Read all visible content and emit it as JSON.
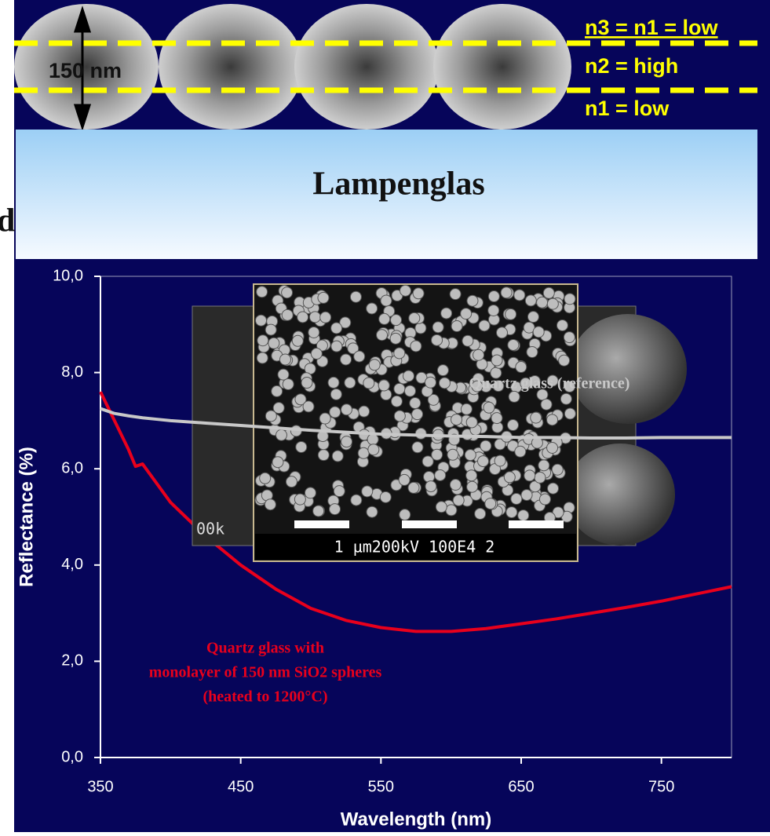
{
  "diagram": {
    "size_label": "150 nm",
    "layer_labels": [
      "n3 = n1 = low",
      "n2 = high",
      "n1 = low"
    ],
    "substrate": "Lampenglas",
    "cut_text": "d"
  },
  "micrographs": {
    "front_caption": "1 µm200kV 100E4 2",
    "back_caption": "00k"
  },
  "chart_data": {
    "type": "line",
    "x_label": "Wavelength (nm)",
    "y_label": "Reflectance (%)",
    "xlim": [
      350,
      800
    ],
    "ylim": [
      0,
      10
    ],
    "xticks": [
      350,
      450,
      550,
      650,
      750
    ],
    "yticks": [
      {
        "value": 0,
        "label": "0,0"
      },
      {
        "value": 2,
        "label": "2,0"
      },
      {
        "value": 4,
        "label": "4,0"
      },
      {
        "value": 6,
        "label": "6,0"
      },
      {
        "value": 8,
        "label": "8,0"
      },
      {
        "value": 10,
        "label": "10,0"
      }
    ],
    "x": [
      350,
      360,
      370,
      375,
      380,
      390,
      400,
      425,
      450,
      475,
      500,
      525,
      550,
      575,
      600,
      625,
      650,
      675,
      700,
      725,
      750,
      775,
      800
    ],
    "series": [
      {
        "color": "#e8001c",
        "values": [
          7.6,
          7.0,
          6.4,
          6.05,
          6.1,
          5.7,
          5.3,
          4.6,
          4.0,
          3.5,
          3.1,
          2.85,
          2.7,
          2.62,
          2.62,
          2.68,
          2.78,
          2.88,
          3.0,
          3.12,
          3.25,
          3.4,
          3.55
        ]
      },
      {
        "color": "#c8c8c8",
        "values": [
          7.25,
          7.15,
          7.1,
          7.08,
          7.06,
          7.03,
          7.0,
          6.95,
          6.9,
          6.85,
          6.8,
          6.76,
          6.72,
          6.7,
          6.68,
          6.67,
          6.65,
          6.65,
          6.64,
          6.64,
          6.65,
          6.65,
          6.65
        ]
      }
    ],
    "annotations": [
      {
        "lines": [
          "Quartz glass (reference)"
        ],
        "color": "#c8c8c8"
      },
      {
        "lines": [
          "Quartz glass with",
          "monolayer of 150 nm SiO2 spheres",
          "(heated to 1200°C)"
        ],
        "color": "#e8001c"
      }
    ]
  }
}
